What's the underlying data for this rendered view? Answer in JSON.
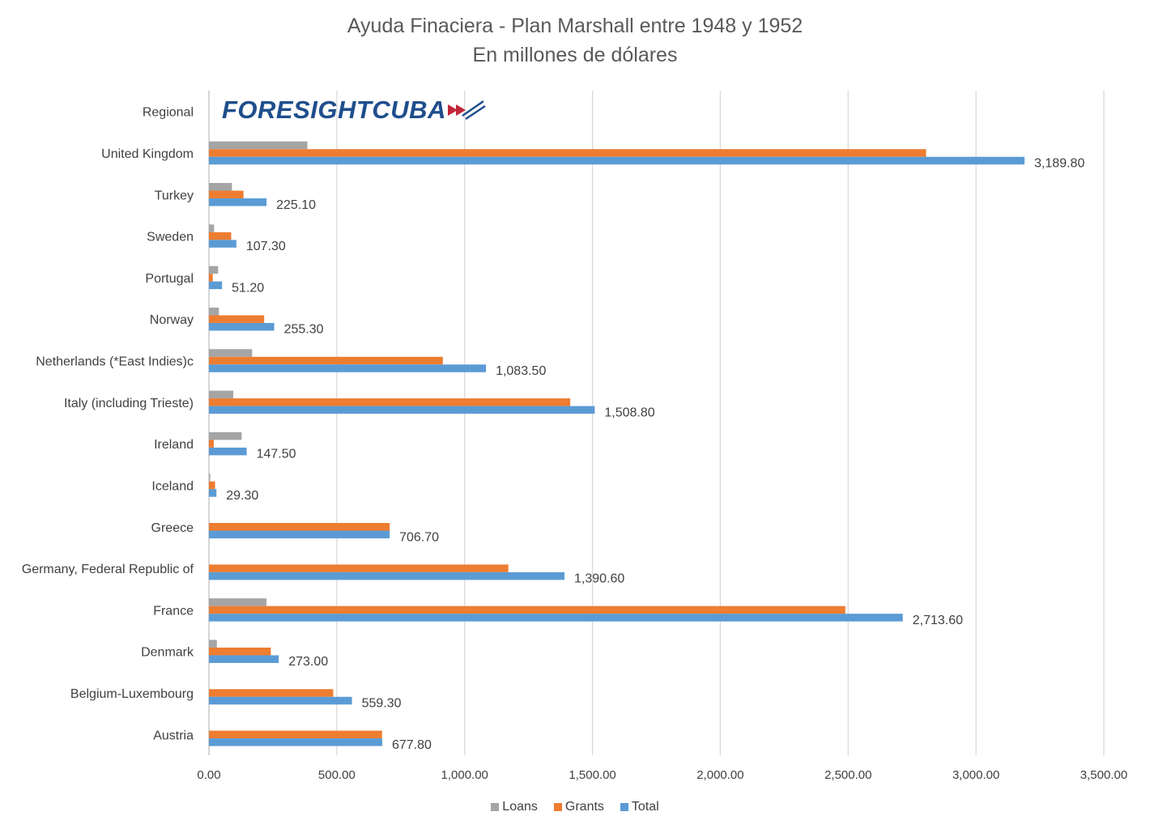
{
  "chart_data": {
    "type": "bar",
    "orientation": "horizontal",
    "title": "Ayuda Finaciera - Plan Marshall entre 1948 y 1952",
    "subtitle": "En millones de dólares",
    "xlim": [
      0,
      3500
    ],
    "xticks": [
      "0.00",
      "500.00",
      "1,000.00",
      "1,500.00",
      "2,000.00",
      "2,500.00",
      "3,000.00",
      "3,500.00"
    ],
    "xtick_values": [
      0,
      500,
      1000,
      1500,
      2000,
      2500,
      3000,
      3500
    ],
    "grid": "vertical",
    "legend_position": "bottom",
    "categories": [
      "Regional",
      "United Kingdom",
      "Turkey",
      "Sweden",
      "Portugal",
      "Norway",
      "Netherlands (*East Indies)c",
      "Italy (including Trieste)",
      "Ireland",
      "Iceland",
      "Greece",
      "Germany, Federal Republic of",
      "France",
      "Denmark",
      "Belgium-Luxembourg",
      "Austria"
    ],
    "series": [
      {
        "name": "Loans",
        "color": "#a5a5a5",
        "values": [
          null,
          385,
          90,
          20,
          36,
          39,
          169,
          95,
          128,
          5,
          0,
          0,
          225,
          31,
          0,
          0
        ]
      },
      {
        "name": "Grants",
        "color": "#ed7d31",
        "values": [
          null,
          2805,
          135,
          87,
          15,
          216,
          915,
          1413,
          19,
          24,
          707,
          1171,
          2489,
          242,
          486,
          677
        ]
      },
      {
        "name": "Total",
        "color": "#5b9bd5",
        "values": [
          null,
          3189.8,
          225.1,
          107.3,
          51.2,
          255.3,
          1083.5,
          1508.8,
          147.5,
          29.3,
          706.7,
          1390.6,
          2713.6,
          273.0,
          559.3,
          677.8
        ]
      }
    ],
    "total_labels": [
      "",
      "3,189.80",
      "225.10",
      "107.30",
      "51.20",
      "255.30",
      "1,083.50",
      "1,508.80",
      "147.50",
      "29.30",
      "706.70",
      "1,390.60",
      "2,713.60",
      "273.00",
      "559.30",
      "677.80"
    ]
  },
  "logo": {
    "text": "FORESIGHTCUBA"
  }
}
